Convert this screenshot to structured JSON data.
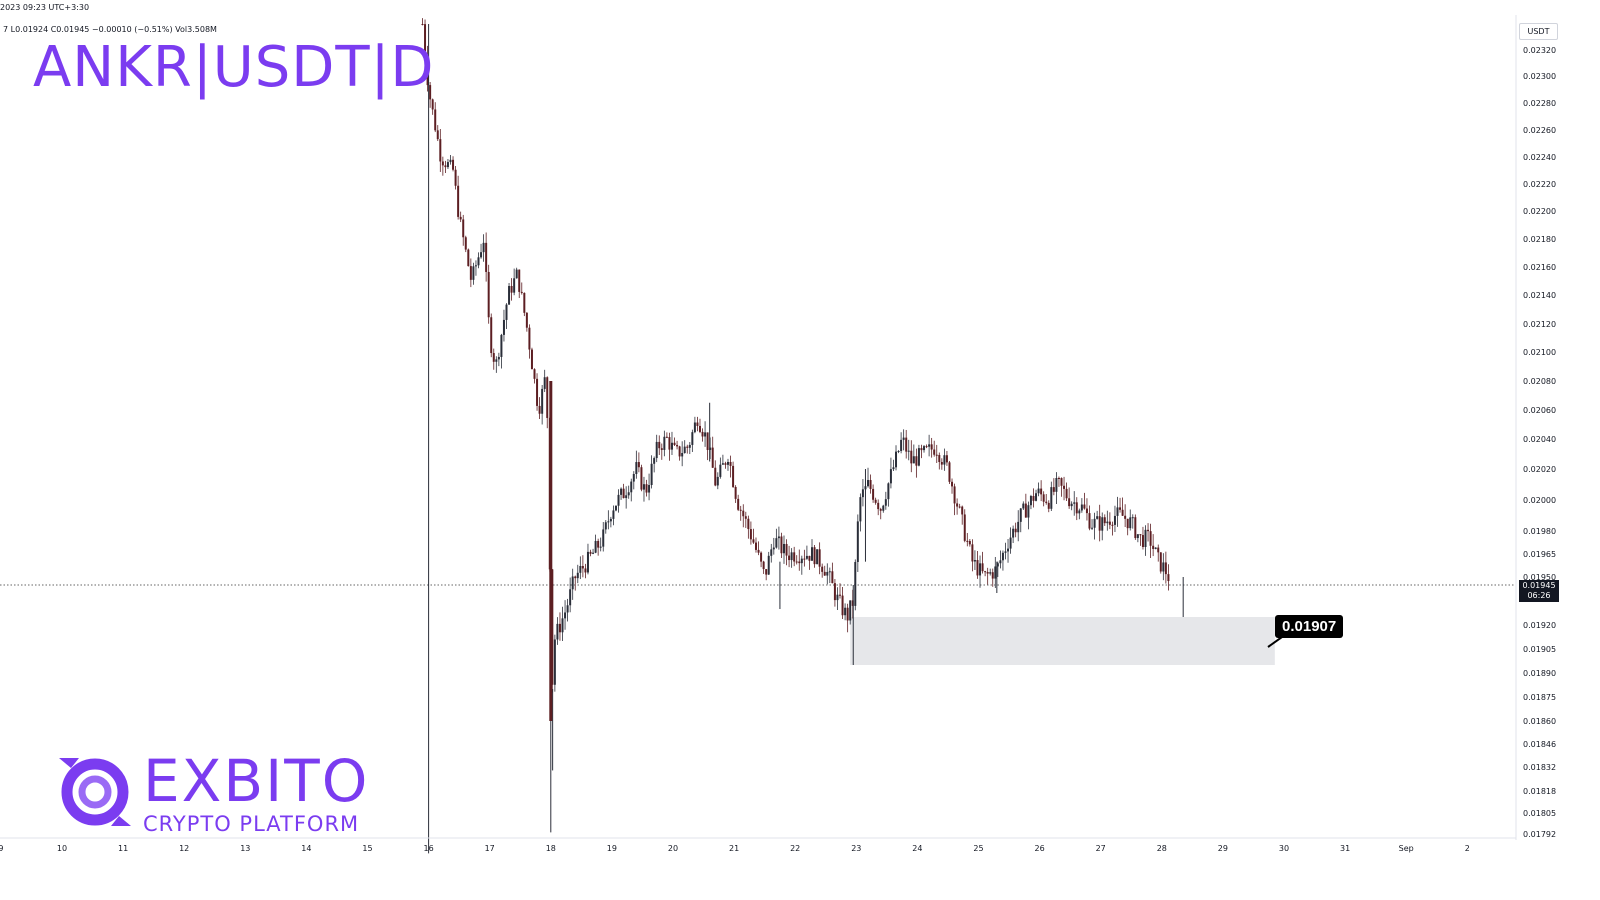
{
  "header": {
    "ohlc_line1": "2023 09:23 UTC+3:30",
    "ohlc_line2": "7  L0.01924  C0.01945  −0.00010 (−0.51%)  Vol3.508M",
    "title": "ANKR|USDT|D"
  },
  "axis": {
    "currency": "USDT",
    "current_price": "0.01945",
    "countdown": "06:26",
    "callout": "0.01907"
  },
  "brand": {
    "name": "EXBITO",
    "tagline": "CRYPTO PLATFORM"
  },
  "colors": {
    "accent": "#7b3cf0",
    "candle_up": "#2a2e39",
    "candle_down": "#5c1e22",
    "zone": "#e3e4e8"
  },
  "chart_data": {
    "type": "candlestick",
    "x_ticks": [
      "9",
      "10",
      "11",
      "12",
      "13",
      "14",
      "15",
      "16",
      "17",
      "18",
      "19",
      "20",
      "21",
      "22",
      "23",
      "24",
      "25",
      "26",
      "27",
      "28",
      "29",
      "30",
      "31",
      "Sep",
      "2"
    ],
    "y_ticks": [
      "0.02320",
      "0.02300",
      "0.02280",
      "0.02260",
      "0.02240",
      "0.02220",
      "0.02200",
      "0.02180",
      "0.02160",
      "0.02140",
      "0.02120",
      "0.02100",
      "0.02080",
      "0.02060",
      "0.02040",
      "0.02020",
      "0.02000",
      "0.01980",
      "0.01965",
      "0.01950",
      "0.01920",
      "0.01905",
      "0.01890",
      "0.01875",
      "0.01860",
      "0.01846",
      "0.01832",
      "0.01818",
      "0.01805",
      "0.01792"
    ],
    "current_price": 0.01945,
    "path": [
      [
        15.9,
        0.0234
      ],
      [
        16.0,
        0.0229
      ],
      [
        16.2,
        0.0224
      ],
      [
        16.4,
        0.0223
      ],
      [
        16.5,
        0.02195
      ],
      [
        16.7,
        0.0215
      ],
      [
        16.9,
        0.0218
      ],
      [
        17.0,
        0.0211
      ],
      [
        17.1,
        0.0209
      ],
      [
        17.3,
        0.0214
      ],
      [
        17.45,
        0.02155
      ],
      [
        17.6,
        0.0212
      ],
      [
        17.8,
        0.0206
      ],
      [
        17.9,
        0.0208
      ],
      [
        17.97,
        0.0204
      ],
      [
        18.0,
        0.0186
      ],
      [
        18.05,
        0.0191
      ],
      [
        18.25,
        0.0193
      ],
      [
        18.4,
        0.0195
      ],
      [
        18.6,
        0.0196
      ],
      [
        18.85,
        0.01975
      ],
      [
        19.0,
        0.01995
      ],
      [
        19.2,
        0.02005
      ],
      [
        19.4,
        0.0202
      ],
      [
        19.55,
        0.02005
      ],
      [
        19.75,
        0.02035
      ],
      [
        19.9,
        0.0204
      ],
      [
        20.05,
        0.0203
      ],
      [
        20.25,
        0.02035
      ],
      [
        20.4,
        0.02055
      ],
      [
        20.55,
        0.0204
      ],
      [
        20.7,
        0.0201
      ],
      [
        20.9,
        0.0203
      ],
      [
        21.05,
        0.02
      ],
      [
        21.3,
        0.01975
      ],
      [
        21.5,
        0.0195
      ],
      [
        21.65,
        0.01975
      ],
      [
        21.85,
        0.01965
      ],
      [
        22.05,
        0.01965
      ],
      [
        22.3,
        0.01965
      ],
      [
        22.5,
        0.01955
      ],
      [
        22.7,
        0.01935
      ],
      [
        22.85,
        0.01925
      ],
      [
        22.95,
        0.01935
      ],
      [
        23.05,
        0.02
      ],
      [
        23.2,
        0.0201
      ],
      [
        23.4,
        0.01995
      ],
      [
        23.6,
        0.0202
      ],
      [
        23.75,
        0.0204
      ],
      [
        23.9,
        0.02025
      ],
      [
        24.1,
        0.0203
      ],
      [
        24.3,
        0.02035
      ],
      [
        24.5,
        0.0202
      ],
      [
        24.7,
        0.0199
      ],
      [
        24.9,
        0.0196
      ],
      [
        25.1,
        0.0195
      ],
      [
        25.3,
        0.01955
      ],
      [
        25.5,
        0.01975
      ],
      [
        25.7,
        0.0199
      ],
      [
        25.95,
        0.02005
      ],
      [
        26.15,
        0.02
      ],
      [
        26.3,
        0.0201
      ],
      [
        26.5,
        0.02
      ],
      [
        26.7,
        0.01995
      ],
      [
        26.85,
        0.01985
      ],
      [
        27.05,
        0.01985
      ],
      [
        27.2,
        0.0199
      ],
      [
        27.35,
        0.0199
      ],
      [
        27.5,
        0.01985
      ],
      [
        27.65,
        0.01975
      ],
      [
        27.8,
        0.01975
      ],
      [
        27.95,
        0.0196
      ],
      [
        28.05,
        0.01955
      ],
      [
        28.15,
        0.01947
      ]
    ],
    "wicks": [
      [
        16.0,
        0.0178,
        0.0234
      ],
      [
        18.0,
        0.01793,
        0.0208
      ],
      [
        18.03,
        0.0183,
        0.0188
      ],
      [
        21.75,
        0.0193,
        0.0196
      ],
      [
        22.95,
        0.01895,
        0.01945
      ],
      [
        23.15,
        0.0196,
        0.0202
      ],
      [
        25.3,
        0.0194,
        0.0196
      ],
      [
        20.6,
        0.02025,
        0.02065
      ],
      [
        28.35,
        0.01925,
        0.0195
      ]
    ],
    "zone": {
      "x_from": 22.9,
      "x_to": 29.85,
      "y_low": 0.01895,
      "y_high": 0.01925
    }
  }
}
